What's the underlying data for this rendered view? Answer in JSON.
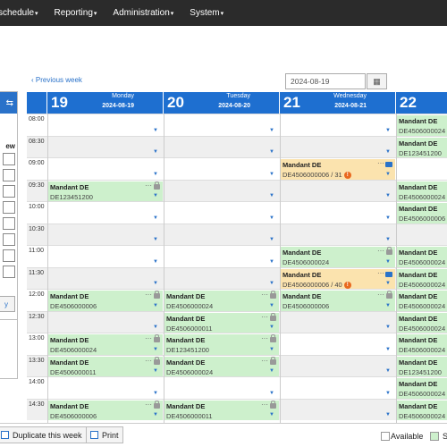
{
  "nav": {
    "items": [
      "schedule",
      "Reporting",
      "Administration",
      "System"
    ]
  },
  "left_panel": {
    "label": "ew",
    "button": "y"
  },
  "toolbar": {
    "prev_week": "Previous week",
    "date_value": "2024-08-19"
  },
  "days": [
    {
      "num": "19",
      "weekday": "Monday",
      "date": "2024-08-19"
    },
    {
      "num": "20",
      "weekday": "Tuesday",
      "date": "2024-08-20"
    },
    {
      "num": "21",
      "weekday": "Wednesday",
      "date": "2024-08-21"
    },
    {
      "num": "22",
      "weekday": "",
      "date": ""
    }
  ],
  "times": [
    "08:00",
    "08:30",
    "09:00",
    "09:30",
    "10:00",
    "10:30",
    "11:00",
    "11:30",
    "12:00",
    "12:30",
    "13:00",
    "13:30",
    "14:00",
    "14:30"
  ],
  "bookings": [
    {
      "day": 3,
      "slot": 0,
      "color": "green",
      "title": "Mandant DE",
      "sub": "DE4506000024"
    },
    {
      "day": 3,
      "slot": 1,
      "color": "green",
      "title": "Mandant DE",
      "sub": "DE123451200"
    },
    {
      "day": 2,
      "slot": 2,
      "color": "yellow",
      "title": "Mandant DE",
      "sub": "DE4506000006 / 31",
      "warn": "!",
      "chat": true
    },
    {
      "day": 0,
      "slot": 3,
      "color": "green",
      "title": "Mandant DE",
      "sub": "DE123451200",
      "lock": true
    },
    {
      "day": 3,
      "slot": 3,
      "color": "green",
      "title": "Mandant DE",
      "sub": "DE4506000024"
    },
    {
      "day": 3,
      "slot": 4,
      "color": "green",
      "title": "Mandant DE",
      "sub": "DE4506000006"
    },
    {
      "day": 2,
      "slot": 6,
      "color": "green",
      "title": "Mandant DE",
      "sub": "DE4506000024",
      "lock": true
    },
    {
      "day": 3,
      "slot": 6,
      "color": "green",
      "title": "Mandant DE",
      "sub": "DE4506000024"
    },
    {
      "day": 2,
      "slot": 7,
      "color": "yellow",
      "title": "Mandant DE",
      "sub": "DE4506000006 / 40",
      "warn": "!",
      "chat": true
    },
    {
      "day": 3,
      "slot": 7,
      "color": "green",
      "title": "Mandant DE",
      "sub": "DE4506000024"
    },
    {
      "day": 0,
      "slot": 8,
      "color": "green",
      "title": "Mandant DE",
      "sub": "DE4506000006",
      "lock": true
    },
    {
      "day": 1,
      "slot": 8,
      "color": "green",
      "title": "Mandant DE",
      "sub": "DE4506000024",
      "lock": true
    },
    {
      "day": 2,
      "slot": 8,
      "color": "green",
      "title": "Mandant DE",
      "sub": "DE4506000006",
      "lock": true
    },
    {
      "day": 3,
      "slot": 8,
      "color": "green",
      "title": "Mandant DE",
      "sub": "DE4506000024"
    },
    {
      "day": 1,
      "slot": 9,
      "color": "green",
      "title": "Mandant DE",
      "sub": "DE4506000011",
      "lock": true
    },
    {
      "day": 3,
      "slot": 9,
      "color": "green",
      "title": "Mandant DE",
      "sub": "DE4506000024"
    },
    {
      "day": 0,
      "slot": 10,
      "color": "green",
      "title": "Mandant DE",
      "sub": "DE4506000024",
      "lock": true
    },
    {
      "day": 1,
      "slot": 10,
      "color": "green",
      "title": "Mandant DE",
      "sub": "DE123451200",
      "lock": true
    },
    {
      "day": 3,
      "slot": 10,
      "color": "green",
      "title": "Mandant DE",
      "sub": "DE4506000024"
    },
    {
      "day": 0,
      "slot": 11,
      "color": "green",
      "title": "Mandant DE",
      "sub": "DE4506000011",
      "lock": true
    },
    {
      "day": 1,
      "slot": 11,
      "color": "green",
      "title": "Mandant DE",
      "sub": "DE4506000024",
      "lock": true
    },
    {
      "day": 3,
      "slot": 11,
      "color": "green",
      "title": "Mandant DE",
      "sub": "DE123451200"
    },
    {
      "day": 3,
      "slot": 12,
      "color": "green",
      "title": "Mandant DE",
      "sub": "DE4506000024"
    },
    {
      "day": 0,
      "slot": 13,
      "color": "green",
      "title": "Mandant DE",
      "sub": "DE4506000006",
      "lock": true
    },
    {
      "day": 1,
      "slot": 13,
      "color": "green",
      "title": "Mandant DE",
      "sub": "DE4506000011",
      "lock": true
    },
    {
      "day": 3,
      "slot": 13,
      "color": "green",
      "title": "Mandant DE",
      "sub": "DE4506000024"
    }
  ],
  "bottom": {
    "duplicate_label": "Duplicate this week",
    "print_label": "Print",
    "legend": [
      {
        "label": "Available",
        "color": "#ffffff"
      },
      {
        "label": "S",
        "color": "#cdf0cc"
      }
    ]
  },
  "colors": {
    "accent": "#1e6fd0",
    "booked": "#cdf0cc",
    "pending": "#fbe3ae"
  }
}
